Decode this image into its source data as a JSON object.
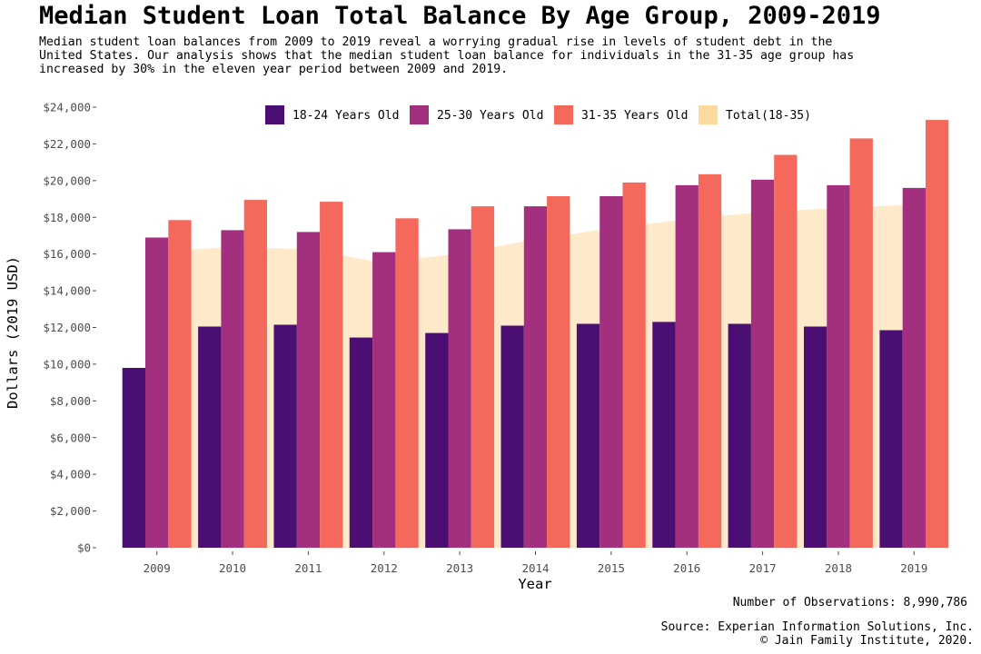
{
  "chart_data": {
    "type": "bar",
    "title": "Median Student Loan Total Balance By Age Group, 2009-2019",
    "subtitle": "Median student loan balances from 2009 to 2019 reveal a worrying gradual rise in levels of student debt in the\nUnited States. Our analysis shows that the median student loan balance for individuals in the 31-35 age group has\nincreased by 30% in the eleven year period between 2009 and 2019.",
    "xlabel": "Year",
    "ylabel": "Dollars (2019 USD)",
    "ylim": [
      0,
      24000
    ],
    "yticks": [
      0,
      2000,
      4000,
      6000,
      8000,
      10000,
      12000,
      14000,
      16000,
      18000,
      20000,
      22000,
      24000
    ],
    "ytick_labels": [
      "$0",
      "$2,000",
      "$4,000",
      "$6,000",
      "$8,000",
      "$10,000",
      "$12,000",
      "$14,000",
      "$16,000",
      "$18,000",
      "$20,000",
      "$22,000",
      "$24,000"
    ],
    "categories": [
      "2009",
      "2010",
      "2011",
      "2012",
      "2013",
      "2014",
      "2015",
      "2016",
      "2017",
      "2018",
      "2019"
    ],
    "series": [
      {
        "name": "18-24 Years Old",
        "color": "#4b0f73",
        "values": [
          9800,
          12050,
          12150,
          11450,
          11700,
          12100,
          12200,
          12300,
          12200,
          12050,
          11850
        ]
      },
      {
        "name": "25-30 Years Old",
        "color": "#a3307e",
        "values": [
          16900,
          17300,
          17200,
          16100,
          17350,
          18600,
          19150,
          19750,
          20050,
          19750,
          19600
        ]
      },
      {
        "name": "31-35 Years Old",
        "color": "#f4695c",
        "values": [
          17850,
          18950,
          18850,
          17950,
          18600,
          19150,
          19900,
          20350,
          21400,
          22300,
          23300
        ]
      }
    ],
    "area_series": {
      "name": "Total(18-35)",
      "color": "#fdd9a0",
      "values": [
        16100,
        16400,
        16250,
        15500,
        16050,
        16800,
        17400,
        17900,
        18300,
        18500,
        18700
      ]
    },
    "legend_position": "top",
    "grid": false
  },
  "notes": {
    "observations": "Number of Observations: 8,990,786",
    "source_line1": "Source: Experian Information Solutions, Inc.",
    "source_line2": "© Jain Family Institute, 2020."
  }
}
